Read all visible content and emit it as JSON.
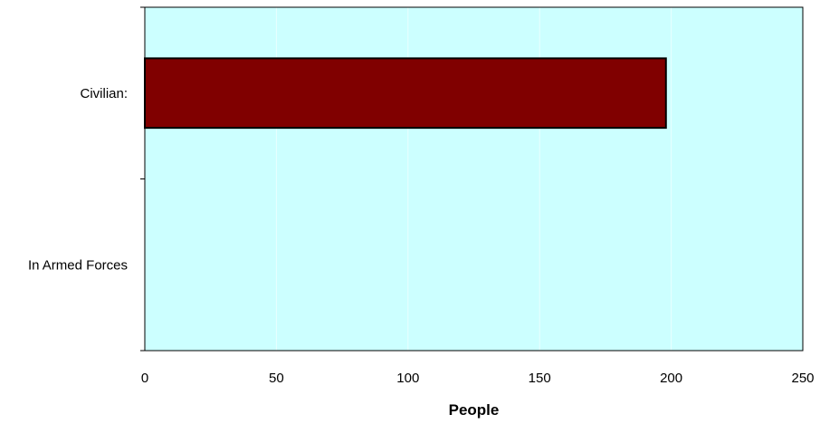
{
  "chart_data": {
    "type": "bar",
    "orientation": "horizontal",
    "categories": [
      "Civilian:",
      "In Armed Forces"
    ],
    "values": [
      198,
      0
    ],
    "xlabel": "People",
    "xlim": [
      0,
      250
    ],
    "xticks": [
      0,
      50,
      100,
      150,
      200,
      250
    ],
    "grid": true,
    "colors": {
      "plot_background": "#ccffff",
      "bar_fill": "#800000",
      "bar_stroke": "#000000",
      "gridline": "#e8ffff"
    }
  }
}
